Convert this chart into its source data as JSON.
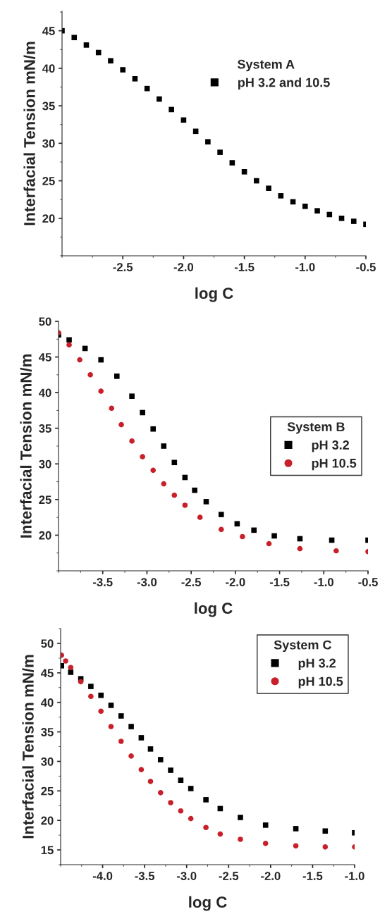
{
  "chart_data": [
    {
      "type": "scatter",
      "xlabel": "log C",
      "ylabel": "Interfacial Tension mN/m",
      "legend_title": "System A",
      "legend": "top right",
      "grid": false,
      "xlim": [
        -3.0,
        -0.5
      ],
      "ylim": [
        15,
        47.6
      ],
      "xticks": [
        -2.5,
        {
          "value": -2.0,
          "label": "-2.0"
        },
        -1.5,
        {
          "value": -1.0,
          "label": "-1.0"
        },
        -0.5
      ],
      "yticks": [
        20,
        25,
        30,
        35,
        40,
        45
      ],
      "series": [
        {
          "name": "pH 3.2 and 10.5",
          "color": "#000000",
          "marker": "square",
          "x": [
            -3.0,
            -2.9,
            -2.8,
            -2.7,
            -2.6,
            -2.5,
            -2.4,
            -2.3,
            -2.2,
            -2.1,
            -2.0,
            -1.9,
            -1.8,
            -1.7,
            -1.6,
            -1.5,
            -1.4,
            -1.3,
            -1.2,
            -1.1,
            -1.0,
            -0.9,
            -0.8,
            -0.7,
            -0.6,
            -0.5
          ],
          "values": [
            45.0,
            44.1,
            43.1,
            42.1,
            41.0,
            39.8,
            38.6,
            37.3,
            35.9,
            34.5,
            33.1,
            31.6,
            30.2,
            28.8,
            27.4,
            26.2,
            25.0,
            24.0,
            23.0,
            22.2,
            21.6,
            21.0,
            20.5,
            20.0,
            19.6,
            19.2
          ]
        }
      ]
    },
    {
      "type": "scatter",
      "xlabel": "log C",
      "ylabel": "Interfacial Tension mN/m",
      "legend_title": "System B",
      "legend": "right",
      "grid": false,
      "xlim": [
        -4.0,
        -0.5
      ],
      "ylim": [
        15,
        50
      ],
      "xticks": [
        -3.5,
        {
          "value": -3.0,
          "label": "-3.0"
        },
        -2.5,
        {
          "value": -2.0,
          "label": "-2.0"
        },
        -1.5,
        {
          "value": -1.0,
          "label": "-1.0"
        },
        -0.5
      ],
      "yticks": [
        20,
        25,
        30,
        35,
        40,
        45,
        50
      ],
      "series": [
        {
          "name": "pH 3.2",
          "color": "#000000",
          "marker": "square",
          "x": [
            -4.0,
            -3.88,
            -3.7,
            -3.52,
            -3.34,
            -3.17,
            -3.05,
            -2.93,
            -2.81,
            -2.69,
            -2.57,
            -2.46,
            -2.33,
            -2.16,
            -1.98,
            -1.79,
            -1.56,
            -1.27,
            -0.91,
            -0.5
          ],
          "values": [
            48.1,
            47.4,
            46.2,
            44.6,
            42.3,
            39.5,
            37.2,
            34.9,
            32.5,
            30.2,
            28.1,
            26.3,
            24.7,
            22.9,
            21.6,
            20.7,
            19.9,
            19.5,
            19.3,
            19.3
          ]
        },
        {
          "name": "pH 10.5",
          "color": "#c8202a",
          "marker": "circle",
          "x": [
            -4.0,
            -3.88,
            -3.76,
            -3.64,
            -3.52,
            -3.4,
            -3.29,
            -3.17,
            -3.05,
            -2.93,
            -2.81,
            -2.69,
            -2.57,
            -2.4,
            -2.16,
            -1.92,
            -1.62,
            -1.27,
            -0.86,
            -0.5
          ],
          "values": [
            48.4,
            46.7,
            44.6,
            42.5,
            40.2,
            37.8,
            35.5,
            33.2,
            31.0,
            29.1,
            27.2,
            25.6,
            24.2,
            22.5,
            20.8,
            19.8,
            18.8,
            18.1,
            17.8,
            17.7
          ]
        }
      ]
    },
    {
      "type": "scatter",
      "xlabel": "log C",
      "ylabel": "Interfacial Tension mN/m",
      "legend_title": "System C",
      "legend": "top right",
      "grid": false,
      "xlim": [
        -4.5,
        -1.0
      ],
      "ylim": [
        12.5,
        52.5
      ],
      "xticks": [
        {
          "value": -4.0,
          "label": "-4.0"
        },
        -3.5,
        {
          "value": -3.0,
          "label": "-3.0"
        },
        -2.5,
        {
          "value": -2.0,
          "label": "-2.0"
        },
        -1.5,
        {
          "value": -1.0,
          "label": "-1.0"
        }
      ],
      "yticks": [
        15,
        20,
        25,
        30,
        35,
        40,
        45,
        50
      ],
      "series": [
        {
          "name": "pH 3.2",
          "color": "#000000",
          "marker": "square",
          "x": [
            -4.49,
            -4.38,
            -4.26,
            -4.14,
            -4.02,
            -3.9,
            -3.78,
            -3.66,
            -3.54,
            -3.43,
            -3.31,
            -3.19,
            -3.07,
            -2.95,
            -2.77,
            -2.6,
            -2.36,
            -2.06,
            -1.7,
            -1.35,
            -1.0
          ],
          "values": [
            46.2,
            45.1,
            44.0,
            42.7,
            41.2,
            39.5,
            37.7,
            35.9,
            34.0,
            32.1,
            30.3,
            28.5,
            26.8,
            25.4,
            23.5,
            22.0,
            20.5,
            19.2,
            18.6,
            18.2,
            17.9
          ]
        },
        {
          "name": "pH 10.5",
          "color": "#c8202a",
          "marker": "circle",
          "x": [
            -4.49,
            -4.44,
            -4.38,
            -4.26,
            -4.14,
            -4.02,
            -3.9,
            -3.78,
            -3.66,
            -3.54,
            -3.43,
            -3.31,
            -3.19,
            -3.07,
            -2.95,
            -2.77,
            -2.6,
            -2.36,
            -2.06,
            -1.7,
            -1.35,
            -1.0
          ],
          "values": [
            48.0,
            47.0,
            45.9,
            43.5,
            41.0,
            38.5,
            35.9,
            33.4,
            30.9,
            28.6,
            26.6,
            24.7,
            23.0,
            21.6,
            20.3,
            18.8,
            17.7,
            16.8,
            16.1,
            15.7,
            15.5,
            15.5
          ]
        }
      ]
    }
  ]
}
